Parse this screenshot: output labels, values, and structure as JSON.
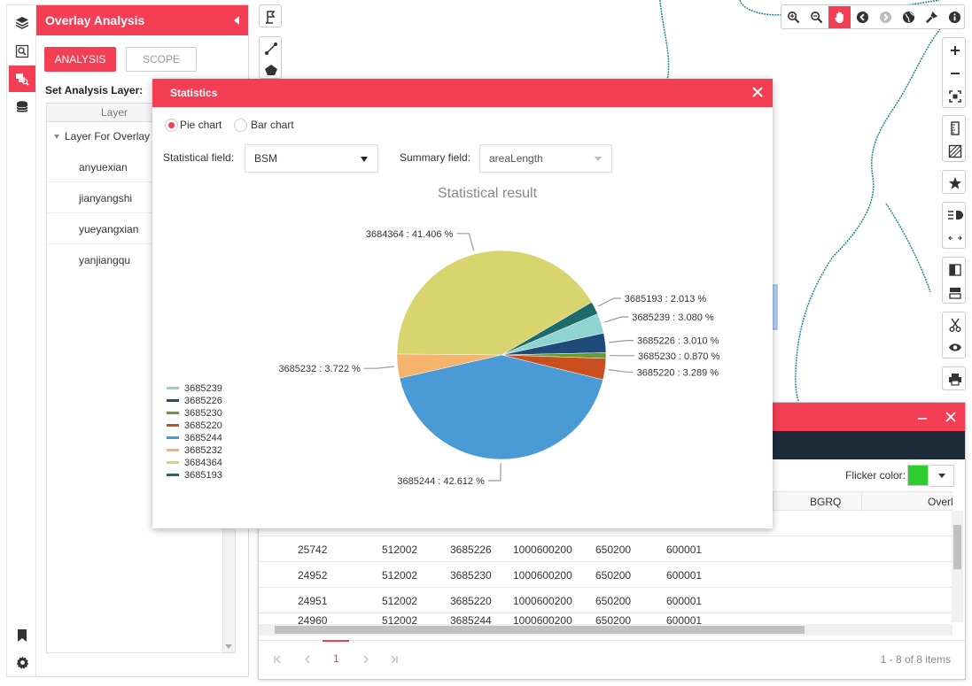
{
  "panel": {
    "title": "Overlay Analysis",
    "tab_analysis": "ANALYSIS",
    "tab_scope": "SCOPE",
    "set_layer_label": "Set Analysis Layer:",
    "layer_column": "Layer",
    "layer_root": "Layer For Overlay",
    "layers": [
      "anyuexian",
      "jianyangshi",
      "yueyangxian",
      "yanjiangqu"
    ]
  },
  "rail": {
    "icons": [
      "layers-icon",
      "search-map-icon",
      "overlay-analysis-icon",
      "database-icon",
      "bookmark-icon",
      "settings-icon"
    ]
  },
  "top_toolbar": {
    "icons": [
      "zoom-in-icon",
      "zoom-out-icon",
      "pan-hand-icon",
      "back-icon",
      "forward-icon",
      "globe-icon",
      "clear-icon",
      "info-icon"
    ]
  },
  "stats": {
    "title": "Statistics",
    "radio_pie": "Pie chart",
    "radio_bar": "Bar chart",
    "statistical_field_label": "Statistical field:",
    "statistical_field_value": "BSM",
    "summary_field_label": "Summary field:",
    "summary_field_value": "areaLength"
  },
  "chart_data": {
    "type": "pie",
    "title": "Statistical result",
    "legend_placement": "left",
    "categories": [
      "3685239",
      "3685226",
      "3685230",
      "3685220",
      "3685244",
      "3685232",
      "3684364",
      "3685193"
    ],
    "values": [
      3.08,
      3.01,
      0.87,
      3.289,
      42.612,
      3.722,
      41.406,
      2.013
    ],
    "labels": [
      "3685239 : 3.080 %",
      "3685226 : 3.010 %",
      "3685230 : 0.870 %",
      "3685220 : 3.289 %",
      "3685244 : 42.612 %",
      "3685232 : 3.722 %",
      "3684364 : 41.406 %",
      "3685193 : 2.013 %"
    ],
    "colors": [
      "#8fd4d0",
      "#1f4a7a",
      "#6a9a2a",
      "#c9501e",
      "#4a9ad6",
      "#f5b36b",
      "#d8d46e",
      "#1e6b6b"
    ]
  },
  "result": {
    "flicker_label": "Flicker color:",
    "flicker_color": "#2ecc2e",
    "columns_visible": [
      "BGRQ",
      "Overl"
    ],
    "rows": [
      [
        "25742",
        "512002",
        "3685226",
        "1000600200",
        "650200",
        "600001"
      ],
      [
        "24952",
        "512002",
        "3685230",
        "1000600200",
        "650200",
        "600001"
      ],
      [
        "24951",
        "512002",
        "3685220",
        "1000600200",
        "650200",
        "600001"
      ]
    ],
    "partial_row": [
      "24960",
      "512002",
      "3685244",
      "1000600200",
      "650200",
      "600001"
    ],
    "current_page": "1",
    "pager_info": "1 - 8 of 8 items"
  }
}
